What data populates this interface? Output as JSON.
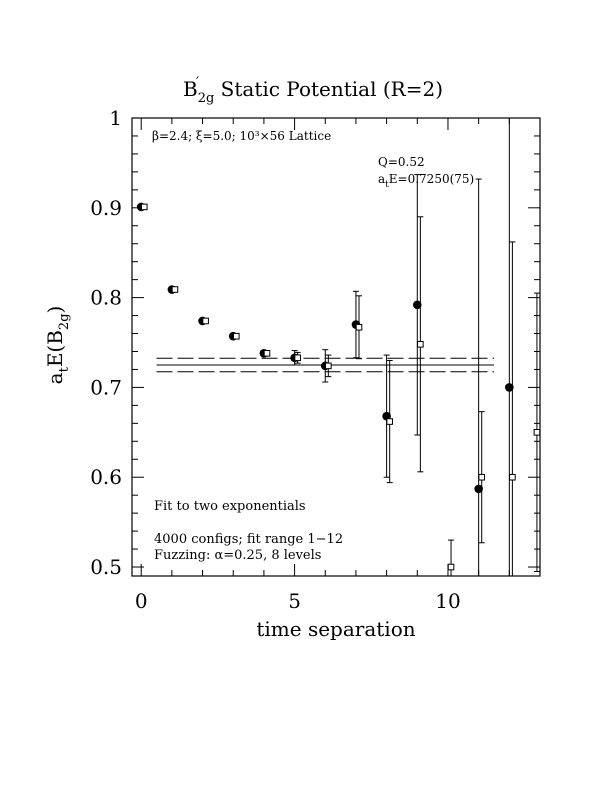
{
  "chart_data": {
    "type": "scatter",
    "title": {
      "main": "B",
      "sub": "2g",
      "rest": " Static Potential (R=2)"
    },
    "xlabel": "time separation",
    "ylabel": {
      "main": "a",
      "sub1": "t",
      "mid": "E(B",
      "sub2": "2g",
      "end": ")"
    },
    "xlim": [
      -0.3,
      13.0
    ],
    "ylim": [
      0.49,
      1.0
    ],
    "x_ticks": [
      0,
      5,
      10
    ],
    "y_ticks": [
      0.5,
      0.6,
      0.7,
      0.8,
      0.9,
      1
    ],
    "y_tick_labels": [
      "0.5",
      "0.6",
      "0.7",
      "0.8",
      "0.9",
      "1"
    ],
    "grid": false,
    "annotations": {
      "lattice": "β=2.4; ξ=5.0; 10³×56 Lattice",
      "q_value": "Q=0.52",
      "energy": {
        "main": "a",
        "sub": "t",
        "rest": "E=0.7250(75)"
      },
      "fit_method": "Fit to two exponentials",
      "configs": "4000 configs; fit range 1−12",
      "fuzzing": "Fuzzing: α=0.25, 8 levels"
    },
    "fit": {
      "value": 0.725,
      "error": 0.0075,
      "x_range": [
        0.5,
        11.5
      ]
    },
    "series": [
      {
        "marker": "filled-circle",
        "points": [
          {
            "x": 0,
            "y": 0.901,
            "err": 0.001
          },
          {
            "x": 1,
            "y": 0.809,
            "err": 0.002
          },
          {
            "x": 2,
            "y": 0.774,
            "err": 0.002
          },
          {
            "x": 3,
            "y": 0.757,
            "err": 0.002
          },
          {
            "x": 4,
            "y": 0.738,
            "err": 0.003
          },
          {
            "x": 5,
            "y": 0.733,
            "err": 0.008
          },
          {
            "x": 6,
            "y": 0.724,
            "err": 0.018
          },
          {
            "x": 7,
            "y": 0.77,
            "err": 0.037
          },
          {
            "x": 8,
            "y": 0.668,
            "err": 0.068
          },
          {
            "x": 9,
            "y": 0.792,
            "err": 0.145
          },
          {
            "x": 11,
            "y": 0.587,
            "err": 0.345
          },
          {
            "x": 12,
            "y": 0.7,
            "err": 0.7
          }
        ]
      },
      {
        "marker": "open-square",
        "points": [
          {
            "x": 0.1,
            "y": 0.901,
            "err": 0.001
          },
          {
            "x": 1.1,
            "y": 0.809,
            "err": 0.002
          },
          {
            "x": 2.1,
            "y": 0.774,
            "err": 0.002
          },
          {
            "x": 3.1,
            "y": 0.757,
            "err": 0.002
          },
          {
            "x": 4.1,
            "y": 0.738,
            "err": 0.002
          },
          {
            "x": 5.1,
            "y": 0.733,
            "err": 0.006
          },
          {
            "x": 6.1,
            "y": 0.724,
            "err": 0.012
          },
          {
            "x": 7.1,
            "y": 0.767,
            "err": 0.035
          },
          {
            "x": 8.1,
            "y": 0.662,
            "err": 0.068
          },
          {
            "x": 9.1,
            "y": 0.748,
            "err": 0.142
          },
          {
            "x": 10.1,
            "y": 0.5,
            "err": 0.03
          },
          {
            "x": 11.1,
            "y": 0.6,
            "err": 0.073
          },
          {
            "x": 12.1,
            "y": 0.6,
            "err": 0.262
          },
          {
            "x": 12.9,
            "y": 0.65,
            "err": 0.155
          }
        ]
      }
    ]
  }
}
